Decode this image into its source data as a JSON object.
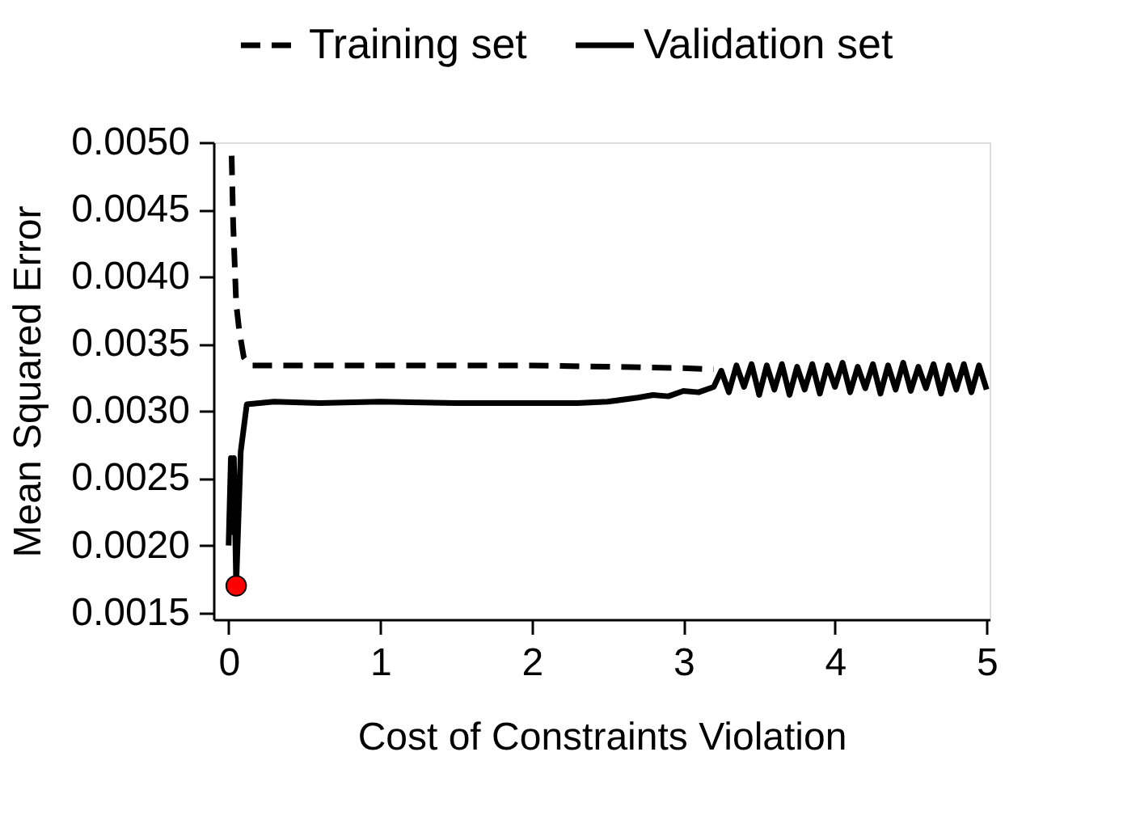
{
  "chart_data": {
    "type": "line",
    "xlabel": "Cost of Constraints Violation",
    "ylabel": "Mean Squared Error",
    "xlim": [
      -0.1,
      5.02
    ],
    "ylim": [
      0.00145,
      0.005
    ],
    "xticks": [
      0,
      1,
      2,
      3,
      4,
      5
    ],
    "yticks": [
      0.0015,
      {
        "value": 0.002,
        "label": "0.0020"
      },
      0.0025,
      {
        "value": 0.003,
        "label": "0.0030"
      },
      0.0035,
      {
        "value": 0.004,
        "label": "0.0040"
      },
      0.0045,
      {
        "value": 0.005,
        "label": "0.0050"
      }
    ],
    "grid": false,
    "legend": "top right",
    "series": [
      {
        "name": "Training set",
        "color": "#000000",
        "line_style": "dashed",
        "x": [
          0.02,
          0.03,
          0.05,
          0.07,
          0.1,
          0.14,
          0.5,
          1,
          1.5,
          2,
          2.5,
          3,
          3.2
        ],
        "values": [
          0.0049,
          0.0044,
          0.0038,
          0.0036,
          0.0034,
          0.00334,
          0.00334,
          0.00334,
          0.00334,
          0.00334,
          0.00333,
          0.00332,
          0.00331
        ]
      },
      {
        "name": "Validation set",
        "color": "#000000",
        "line_style": "solid",
        "x": [
          0.0,
          0.015,
          0.025,
          0.035,
          0.05,
          0.08,
          0.12,
          0.3,
          0.6,
          1,
          1.5,
          2,
          2.3,
          2.5,
          2.7,
          2.8,
          2.9,
          3.0,
          3.1,
          3.2,
          3.25,
          3.3,
          3.35,
          3.4,
          3.45,
          3.5,
          3.55,
          3.6,
          3.65,
          3.7,
          3.75,
          3.8,
          3.85,
          3.9,
          3.95,
          4.0,
          4.05,
          4.1,
          4.15,
          4.2,
          4.25,
          4.3,
          4.35,
          4.4,
          4.45,
          4.5,
          4.55,
          4.6,
          4.65,
          4.7,
          4.75,
          4.8,
          4.85,
          4.9,
          4.95,
          5.0
        ],
        "values": [
          0.002,
          0.00265,
          0.0021,
          0.00265,
          0.0017,
          0.0027,
          0.00305,
          0.00307,
          0.00306,
          0.00307,
          0.00306,
          0.00306,
          0.00306,
          0.00307,
          0.0031,
          0.00312,
          0.00311,
          0.00315,
          0.00314,
          0.00318,
          0.0033,
          0.00314,
          0.00334,
          0.00318,
          0.00335,
          0.00312,
          0.00334,
          0.00316,
          0.00335,
          0.00312,
          0.00333,
          0.00316,
          0.00335,
          0.00313,
          0.00334,
          0.00318,
          0.00336,
          0.00314,
          0.00333,
          0.00317,
          0.00335,
          0.00313,
          0.00334,
          0.00316,
          0.00336,
          0.00315,
          0.00333,
          0.00317,
          0.00335,
          0.00313,
          0.00334,
          0.00316,
          0.00335,
          0.00314,
          0.00334,
          0.00316
        ]
      },
      {
        "type": "scatter",
        "color": "#ff0000",
        "marker": "circle",
        "x": [
          0.05
        ],
        "values": [
          0.0017
        ]
      }
    ]
  }
}
